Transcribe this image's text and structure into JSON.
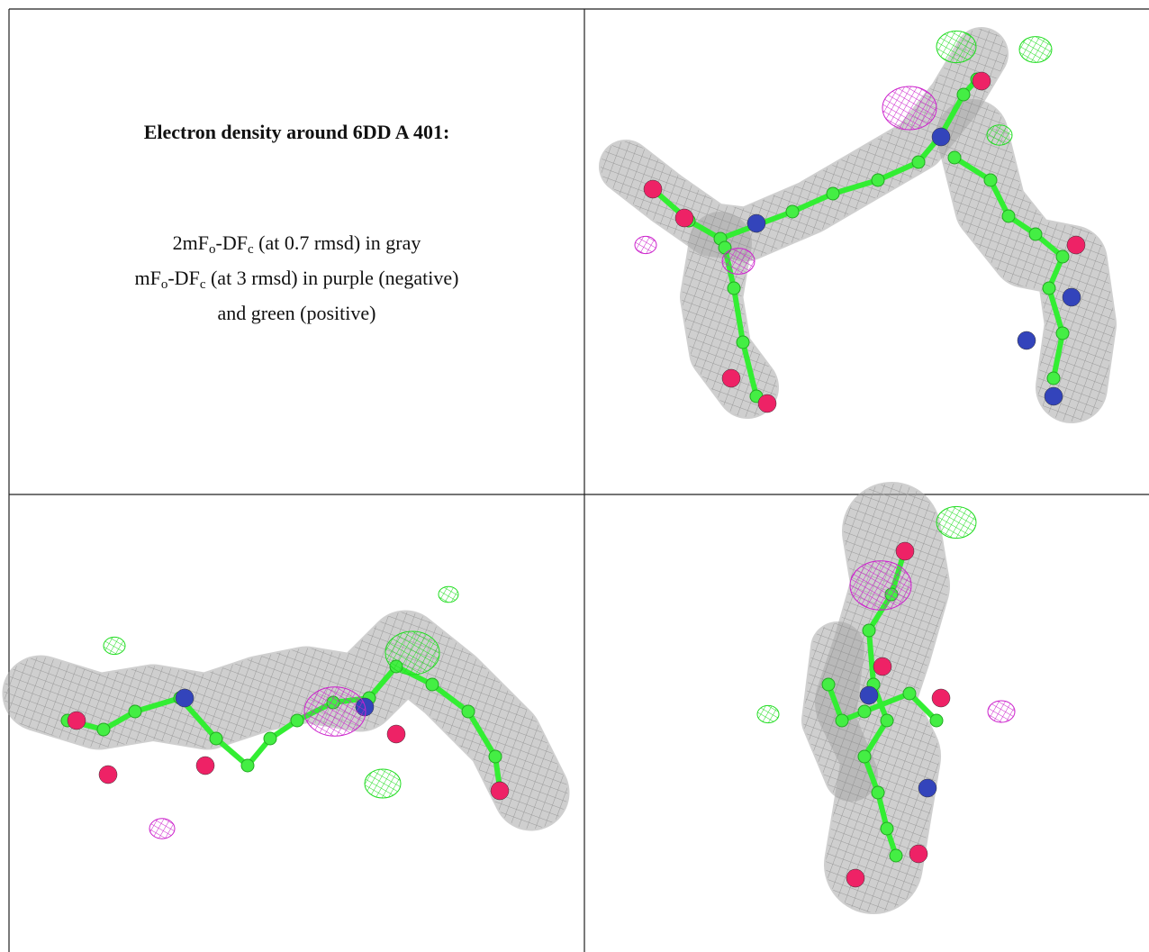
{
  "caption": {
    "title": "Electron density around 6DD A 401:",
    "lines": [
      [
        "2mF",
        "o",
        "-DF",
        "c",
        " (at 0.7 rmsd) in gray"
      ],
      [
        "mF",
        "o",
        "-DF",
        "c",
        " (at 3 rmsd) in purple (negative)"
      ],
      [
        "and green (positive)"
      ]
    ]
  }
}
